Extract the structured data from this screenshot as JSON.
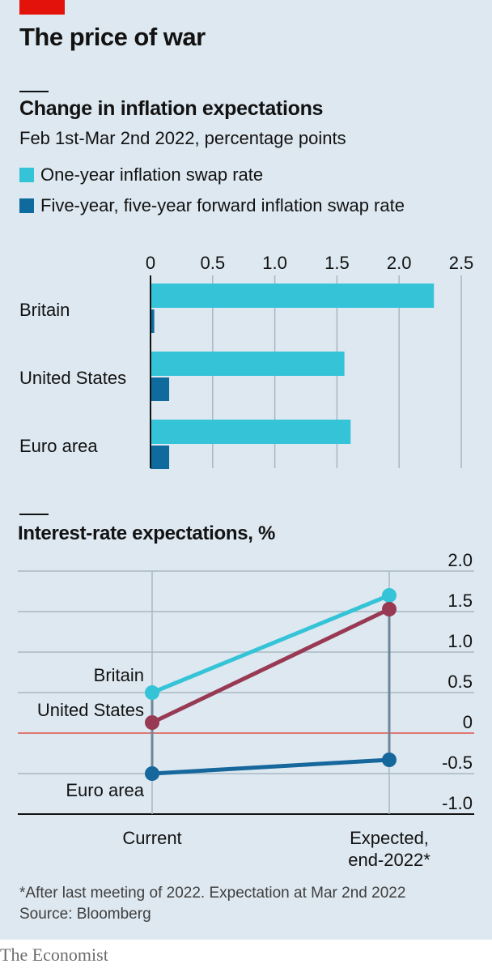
{
  "title": "The price of war",
  "colors": {
    "brand_red": "#e3120b",
    "background": "#dde8f0",
    "one_year": "#35c4d7",
    "five_year": "#0f6b9e",
    "britain": "#35c4d7",
    "united_states": "#983a53",
    "euro_area": "#15679c",
    "zero_line": "#e0524a"
  },
  "chart_data": [
    {
      "type": "bar",
      "title": "Change in inflation expectations",
      "subtitle": "Feb 1st-Mar 2nd 2022, percentage points",
      "categories": [
        "Britain",
        "United States",
        "Euro area"
      ],
      "series": [
        {
          "name": "One-year inflation swap rate",
          "values": [
            2.28,
            1.56,
            1.61
          ]
        },
        {
          "name": "Five-year, five-year forward inflation swap rate",
          "values": [
            0.03,
            0.15,
            0.15
          ]
        }
      ],
      "orientation": "horizontal",
      "xlim": [
        0,
        2.5
      ],
      "ticks": [
        "0",
        "0.5",
        "1.0",
        "1.5",
        "2.0",
        "2.5"
      ],
      "tick_values": [
        0,
        0.5,
        1.0,
        1.5,
        2.0,
        2.5
      ],
      "grid": true,
      "legend": "top-left"
    },
    {
      "type": "line",
      "title": "Interest-rate expectations, %",
      "x": [
        "Current",
        "Expected, end-2022*"
      ],
      "x_labels": [
        [
          "Current"
        ],
        [
          "Expected,",
          "end-2022*"
        ]
      ],
      "series": [
        {
          "name": "Britain",
          "values": [
            0.5,
            1.7
          ]
        },
        {
          "name": "United States",
          "values": [
            0.13,
            1.53
          ]
        },
        {
          "name": "Euro area",
          "values": [
            -0.5,
            -0.33
          ]
        }
      ],
      "ylim": [
        -1.0,
        2.0
      ],
      "ticks": [
        "2.0",
        "1.5",
        "1.0",
        "0.5",
        "0",
        "-0.5",
        "-1.0"
      ],
      "tick_values": [
        2.0,
        1.5,
        1.0,
        0.5,
        0,
        -0.5,
        -1.0
      ],
      "grid": true,
      "labels_inline": true
    }
  ],
  "footnote": "*After last meeting of 2022. Expectation at Mar 2nd 2022",
  "source": "Source: Bloomberg",
  "brand": "The Economist"
}
